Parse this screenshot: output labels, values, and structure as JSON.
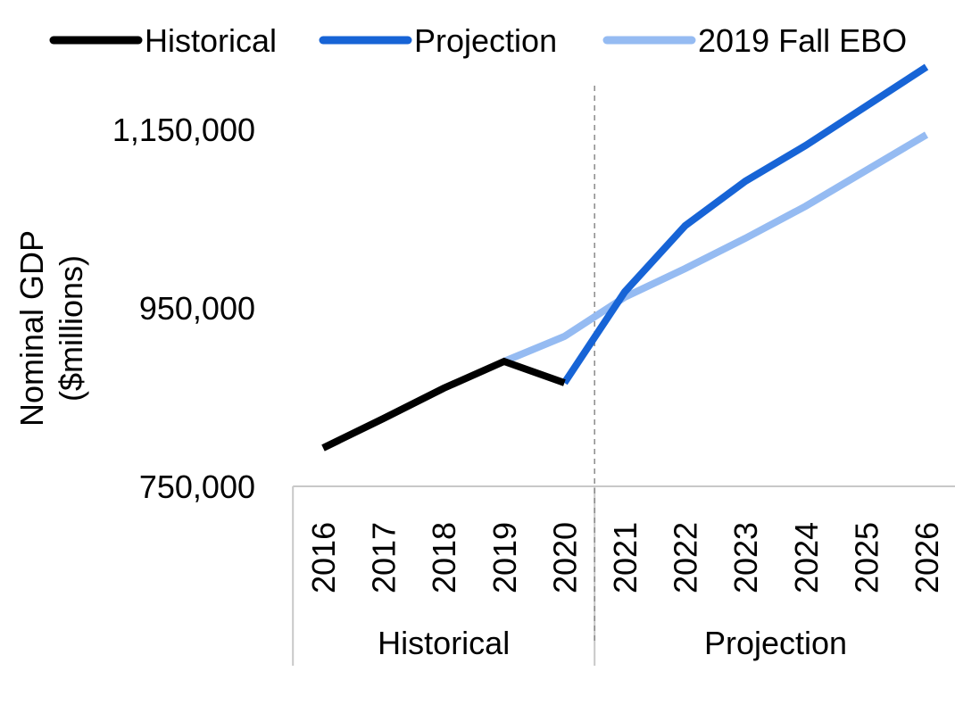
{
  "chart_data": {
    "type": "line",
    "ylabel_line1": "Nominal GDP",
    "ylabel_line2": "($millions)",
    "ylim": [
      750000,
      1220000
    ],
    "yticks": [
      750000,
      950000,
      1150000
    ],
    "ytick_labels": [
      "750,000",
      "950,000",
      "1,150,000"
    ],
    "categories": [
      "2016",
      "2017",
      "2018",
      "2019",
      "2020",
      "2021",
      "2022",
      "2023",
      "2024",
      "2025",
      "2026"
    ],
    "groups": [
      {
        "label": "Historical",
        "from": "2016",
        "to": "2020"
      },
      {
        "label": "Projection",
        "from": "2021",
        "to": "2026"
      }
    ],
    "divider_between": [
      "2020",
      "2021"
    ],
    "series": [
      {
        "name": "Historical",
        "color": "#000000",
        "x": [
          "2016",
          "2017",
          "2018",
          "2019",
          "2020"
        ],
        "values": [
          793000,
          826000,
          860000,
          890000,
          866000
        ]
      },
      {
        "name": "Projection",
        "color": "#1764D6",
        "x": [
          "2020",
          "2021",
          "2022",
          "2023",
          "2024",
          "2025",
          "2026"
        ],
        "values": [
          866000,
          968000,
          1042000,
          1092000,
          1132000,
          1176000,
          1220000
        ]
      },
      {
        "name": "2019 Fall EBO",
        "color": "#95BBF2",
        "x": [
          "2019",
          "2020",
          "2021",
          "2022",
          "2023",
          "2024",
          "2025",
          "2026"
        ],
        "values": [
          890000,
          918000,
          962000,
          994000,
          1028000,
          1064000,
          1104000,
          1144000
        ]
      }
    ],
    "legend_position": "top",
    "grid": false
  }
}
